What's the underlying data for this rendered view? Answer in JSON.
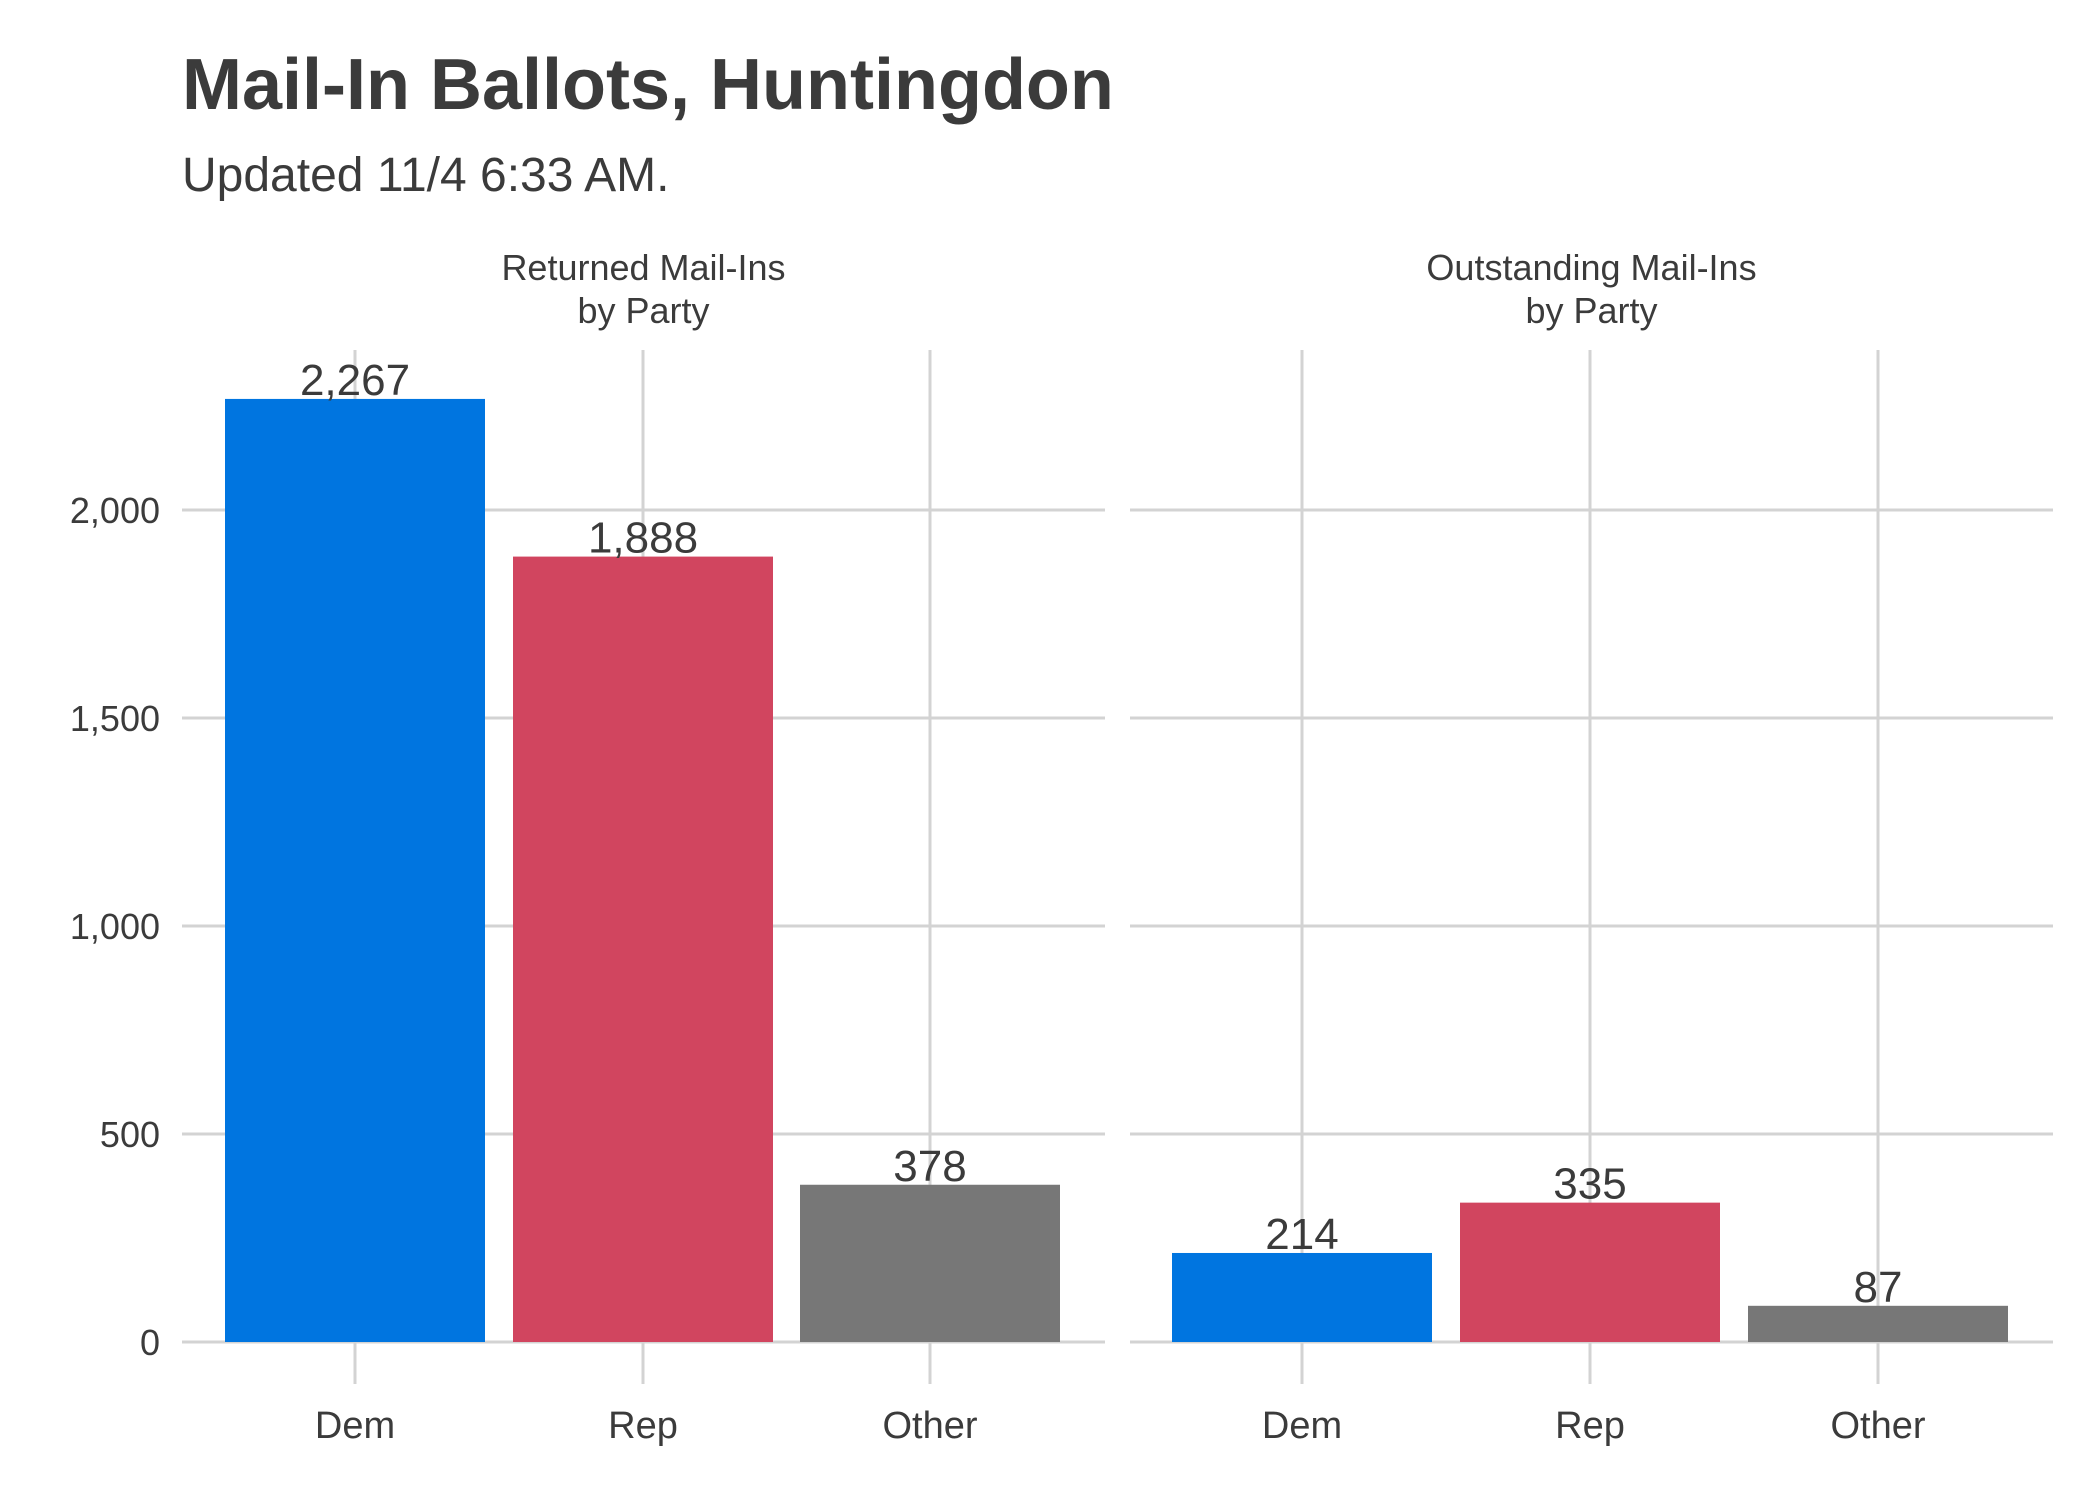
{
  "title": "Mail-In Ballots, Huntingdon",
  "subtitle": "Updated 11/4 6:33 AM.",
  "colors": {
    "Dem": "#0075e0",
    "Rep": "#d1455f",
    "Other": "#777777",
    "grid": "#d3d3d3",
    "text": "#3b3b3b"
  },
  "chart_data": [
    {
      "type": "bar",
      "title": "Returned Mail-Ins\nby Party",
      "categories": [
        "Dem",
        "Rep",
        "Other"
      ],
      "values": [
        2267,
        1888,
        378
      ],
      "value_labels": [
        "2,267",
        "1,888",
        "378"
      ],
      "ylim": [
        0,
        2267
      ],
      "yticks": [
        0,
        500,
        1000,
        1500,
        2000
      ],
      "ytick_labels": [
        "0",
        "500",
        "1,000",
        "1,500",
        "2,000"
      ],
      "grid": true
    },
    {
      "type": "bar",
      "title": "Outstanding Mail-Ins\nby Party",
      "categories": [
        "Dem",
        "Rep",
        "Other"
      ],
      "values": [
        214,
        335,
        87
      ],
      "value_labels": [
        "214",
        "335",
        "87"
      ],
      "ylim": [
        0,
        2267
      ],
      "yticks": [
        0,
        500,
        1000,
        1500,
        2000
      ],
      "grid": true
    }
  ]
}
